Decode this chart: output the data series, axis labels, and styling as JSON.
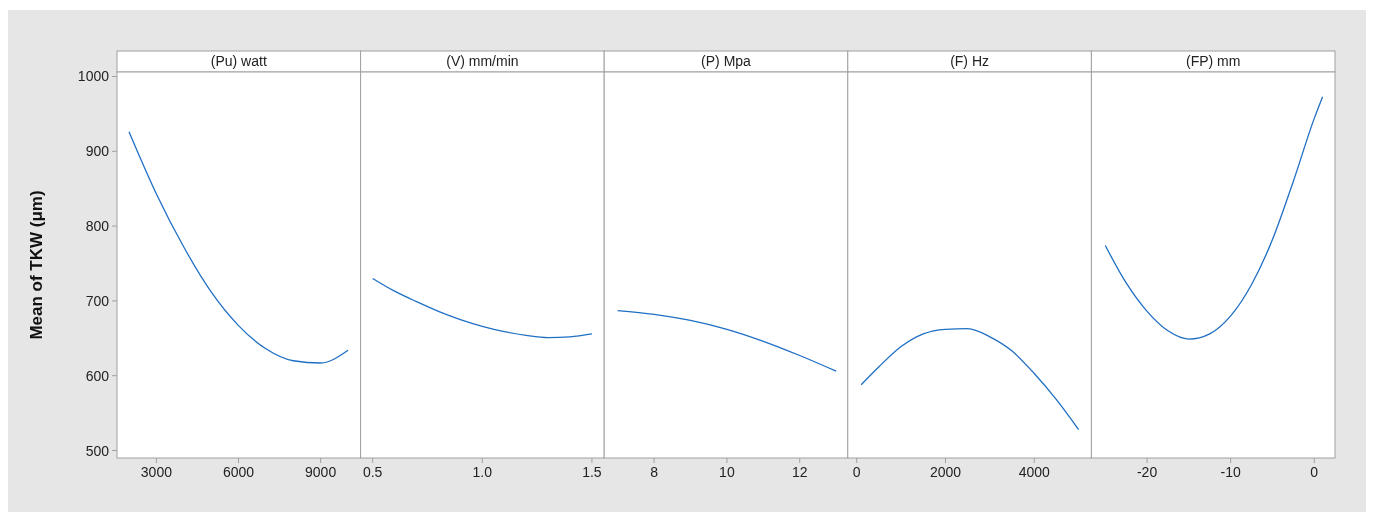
{
  "chart_data": [
    {
      "type": "line",
      "title": "(Pu) watt",
      "ylabel": "Mean of TKW (μm)",
      "xlim": [
        1560,
        10460
      ],
      "xticks": [
        3000,
        6000,
        9000
      ],
      "ylim": [
        490,
        1006
      ],
      "yticks": [
        500,
        600,
        700,
        800,
        900,
        1000
      ],
      "grid": false,
      "marker": "none",
      "line_style": "solid",
      "series": [
        {
          "color": "#1f6fc4",
          "x": [
            2000,
            3000,
            4000,
            5000,
            6000,
            7000,
            8000,
            9000,
            10000
          ],
          "values": [
            926,
            843,
            772,
            712,
            667,
            636,
            620,
            617,
            634
          ]
        }
      ]
    },
    {
      "type": "line",
      "title": "(V) mm/min",
      "xlim": [
        0.445,
        1.556
      ],
      "xticks": [
        {
          "value": 0.5,
          "label": "0.5"
        },
        {
          "value": 1,
          "label": "1.0"
        },
        {
          "value": 1.5,
          "label": "1.5"
        }
      ],
      "ylim": [
        490,
        1006
      ],
      "tick_labels": "x",
      "grid": false,
      "marker": "none",
      "line_style": "solid",
      "series": [
        {
          "color": "#1f6fc4",
          "x": [
            0.5,
            0.6,
            0.7,
            0.8,
            0.9,
            1.0,
            1.1,
            1.2,
            1.3,
            1.4,
            1.5
          ],
          "values": [
            730,
            713,
            699,
            686,
            675,
            666,
            659,
            654,
            651,
            652,
            656
          ]
        }
      ]
    },
    {
      "type": "line",
      "title": "(P) Mpa",
      "xlim": [
        6.63,
        13.32
      ],
      "xticks": [
        8,
        10,
        12
      ],
      "ylim": [
        490,
        1006
      ],
      "tick_labels": "x",
      "grid": false,
      "marker": "none",
      "line_style": "solid",
      "series": [
        {
          "color": "#1f6fc4",
          "x": [
            7,
            8,
            9,
            10,
            11,
            12,
            13
          ],
          "values": [
            687,
            682,
            674,
            662,
            646,
            627,
            606
          ]
        }
      ]
    },
    {
      "type": "line",
      "title": "(F) Hz",
      "xlim": [
        -202,
        5288
      ],
      "xticks": [
        0,
        2000,
        4000
      ],
      "ylim": [
        490,
        1006
      ],
      "tick_labels": "x",
      "grid": false,
      "marker": "none",
      "line_style": "solid",
      "series": [
        {
          "color": "#1f6fc4",
          "x": [
            100,
            500,
            1000,
            1500,
            2000,
            2500,
            3000,
            3500,
            4000,
            4500,
            5000
          ],
          "values": [
            588,
            612,
            639,
            656,
            662,
            663,
            652,
            633,
            603,
            568,
            528
          ]
        }
      ]
    },
    {
      "type": "line",
      "title": "(FP) mm",
      "xlim": [
        -26.66,
        2.48
      ],
      "xticks": [
        -20,
        -10,
        0
      ],
      "ylim": [
        490,
        1006
      ],
      "tick_labels": "x",
      "grid": false,
      "marker": "none",
      "line_style": "solid",
      "series": [
        {
          "color": "#1f6fc4",
          "x": [
            -25,
            -22.5,
            -20,
            -17.5,
            -15,
            -12.5,
            -10,
            -7.5,
            -5,
            -2.5,
            0,
            1
          ],
          "values": [
            774,
            724,
            686,
            660,
            649,
            656,
            680,
            722,
            782,
            860,
            944,
            973
          ]
        }
      ]
    }
  ]
}
